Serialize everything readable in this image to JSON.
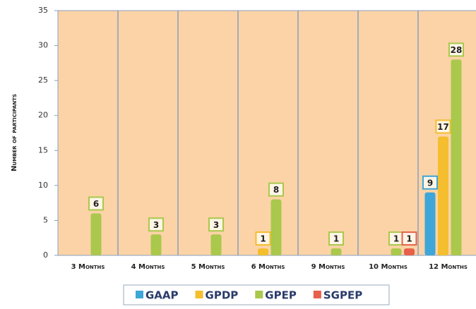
{
  "chart_data": {
    "type": "bar",
    "y_label": "Number of participants",
    "categories": [
      "3 Months",
      "4 Months",
      "5 Months",
      "6 Months",
      "9 Months",
      "10 Months",
      "12 Months"
    ],
    "series": [
      {
        "name": "GAAP",
        "color": "#3ea6d8",
        "values": [
          0,
          0,
          0,
          0,
          0,
          0,
          9
        ]
      },
      {
        "name": "GPDP",
        "color": "#f4be2e",
        "values": [
          0,
          0,
          0,
          1,
          0,
          0,
          17
        ]
      },
      {
        "name": "GPEP",
        "color": "#a9c84c",
        "values": [
          6,
          3,
          3,
          8,
          1,
          1,
          28
        ]
      },
      {
        "name": "SGPEP",
        "color": "#e6604a",
        "values": [
          0,
          0,
          0,
          0,
          0,
          1,
          0
        ]
      }
    ],
    "ylim": [
      0,
      35
    ],
    "yticks": [
      0,
      5,
      10,
      15,
      20,
      25,
      30,
      35
    ]
  }
}
